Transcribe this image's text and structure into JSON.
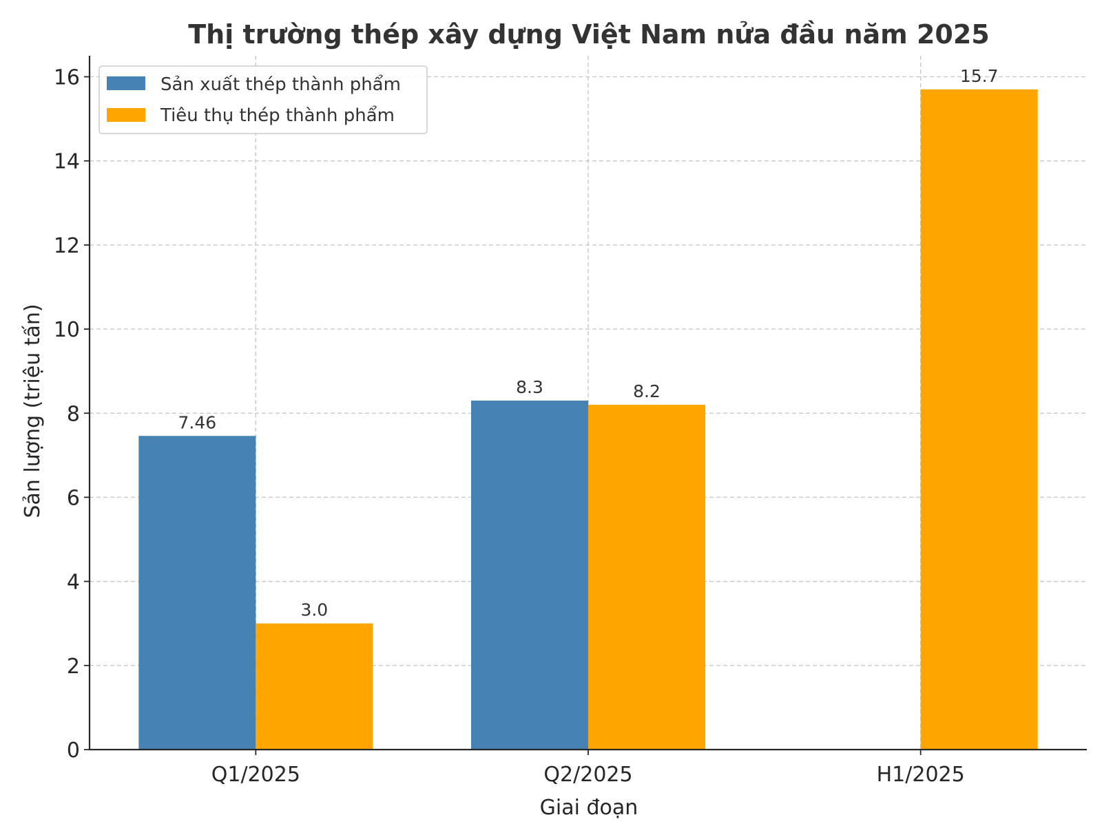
{
  "chart_data": {
    "type": "bar",
    "title": "Thị trường thép xây dựng Việt Nam nửa đầu năm 2025",
    "xlabel": "Giai đoạn",
    "ylabel": "Sản lượng (triệu tấn)",
    "categories": [
      "Q1/2025",
      "Q2/2025",
      "H1/2025"
    ],
    "series": [
      {
        "name": "Sản xuất thép thành phẩm",
        "color": "#4682b4",
        "values": [
          7.46,
          8.3,
          null
        ],
        "labels": [
          "7.46",
          "8.3",
          ""
        ]
      },
      {
        "name": "Tiêu thụ thép thành phẩm",
        "color": "#ffa500",
        "values": [
          3.0,
          8.2,
          15.7
        ],
        "labels": [
          "3.0",
          "8.2",
          "15.7"
        ]
      }
    ],
    "ylim": [
      0,
      16.5
    ],
    "yticks": [
      0,
      2,
      4,
      6,
      8,
      10,
      12,
      14,
      16
    ],
    "grid": true,
    "legend_position": "top-left"
  }
}
